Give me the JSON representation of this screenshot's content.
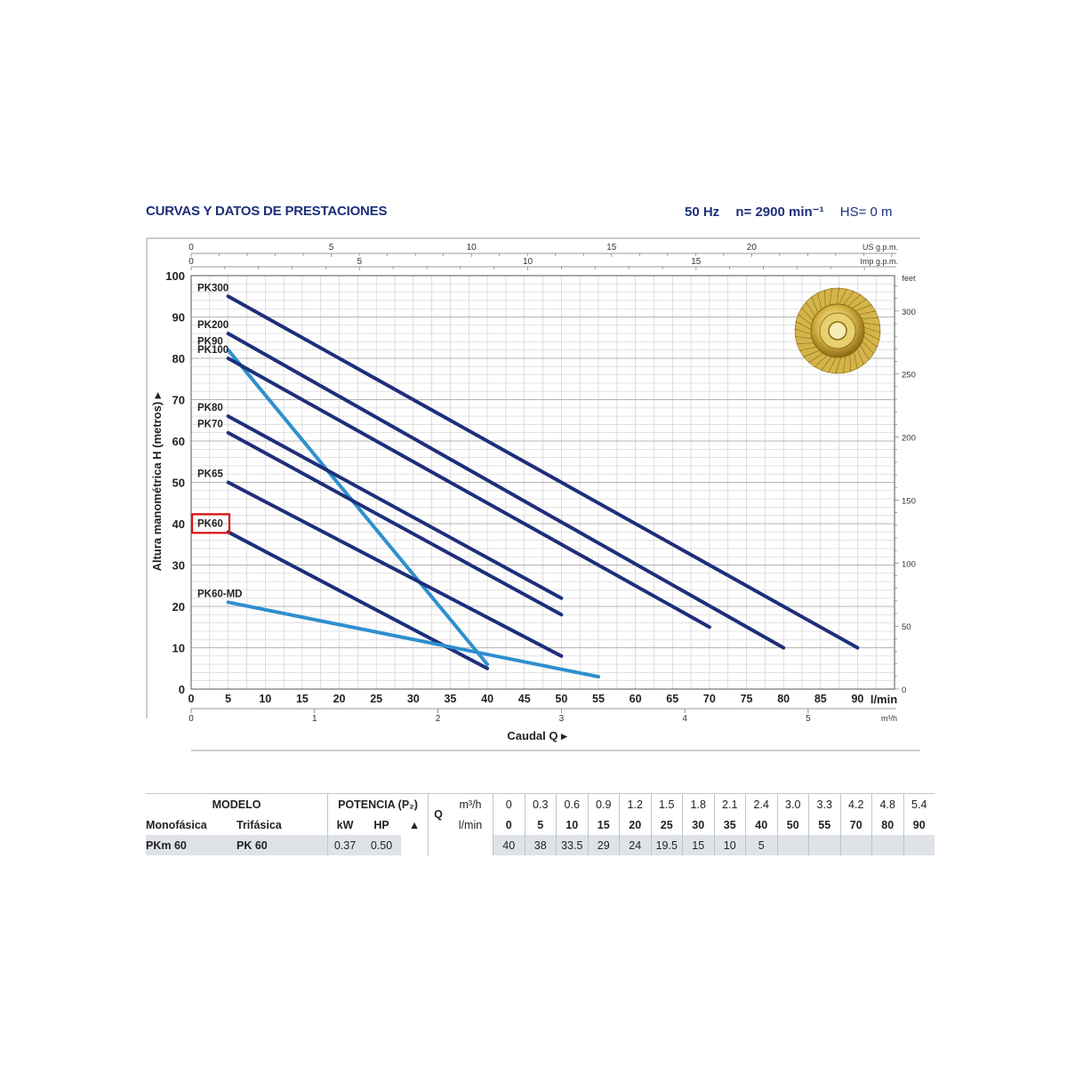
{
  "header": {
    "title": "CURVAS Y DATOS DE PRESTACIONES",
    "hz": "50 Hz",
    "rpm": "n= 2900 min⁻¹",
    "hs": "HS= 0 m"
  },
  "chart_data": {
    "type": "line",
    "title": "",
    "ylabel": "Altura manométrica H (metros)",
    "xlabel": "Caudal Q",
    "x_unit": "l/min",
    "x2_unit": "m³/h",
    "top_units": [
      "US g.p.m.",
      "Imp g.p.m."
    ],
    "right_unit": "feet",
    "xlim": [
      0,
      95
    ],
    "ylim": [
      0,
      100
    ],
    "x_ticks": [
      0,
      5,
      10,
      15,
      20,
      25,
      30,
      35,
      40,
      45,
      50,
      55,
      60,
      65,
      70,
      75,
      80,
      85,
      90
    ],
    "y_ticks": [
      0,
      10,
      20,
      30,
      40,
      50,
      60,
      70,
      80,
      90,
      100
    ],
    "m3h_ticks": [
      0,
      1,
      2,
      3,
      4,
      5
    ],
    "usgpm_ticks": [
      0,
      5,
      10,
      15,
      20
    ],
    "impgpm_ticks": [
      0,
      5,
      10,
      15
    ],
    "feet_ticks": [
      0,
      50,
      100,
      150,
      200,
      250,
      300
    ],
    "grid": true,
    "highlighted_series": "PK60",
    "series": [
      {
        "name": "PK300",
        "color": "#1d2f7a",
        "x": [
          5,
          90
        ],
        "y": [
          95,
          10
        ]
      },
      {
        "name": "PK200",
        "color": "#1d2f7a",
        "x": [
          5,
          80
        ],
        "y": [
          86,
          10
        ]
      },
      {
        "name": "PK90",
        "color": "#2e8fcf",
        "x": [
          5,
          40
        ],
        "y": [
          82,
          6
        ]
      },
      {
        "name": "PK100",
        "color": "#1d2f7a",
        "x": [
          5,
          70
        ],
        "y": [
          80,
          15
        ]
      },
      {
        "name": "PK80",
        "color": "#1d2f7a",
        "x": [
          5,
          50
        ],
        "y": [
          66,
          22
        ]
      },
      {
        "name": "PK70",
        "color": "#1d2f7a",
        "x": [
          5,
          50
        ],
        "y": [
          62,
          18
        ]
      },
      {
        "name": "PK65",
        "color": "#1d2f7a",
        "x": [
          5,
          50
        ],
        "y": [
          50,
          8
        ]
      },
      {
        "name": "PK60",
        "color": "#1d2f7a",
        "x": [
          5,
          40
        ],
        "y": [
          38,
          5
        ]
      },
      {
        "name": "PK60-MD",
        "color": "#2e8fcf",
        "x": [
          5,
          55
        ],
        "y": [
          21,
          3
        ]
      }
    ]
  },
  "table": {
    "modelo_label": "MODELO",
    "mono_label": "Monofásica",
    "tri_label": "Trifásica",
    "potencia_label": "POTENCIA (P₂)",
    "kw_label": "kW",
    "hp_label": "HP",
    "q_label": "Q",
    "m3h_label": "m³/h",
    "lmin_label": "l/min",
    "m3h_values": [
      "0",
      "0.3",
      "0.6",
      "0.9",
      "1.2",
      "1.5",
      "1.8",
      "2.1",
      "2.4",
      "3.0",
      "3.3",
      "4.2",
      "4.8",
      "5.4"
    ],
    "lmin_values": [
      "0",
      "5",
      "10",
      "15",
      "20",
      "25",
      "30",
      "35",
      "40",
      "50",
      "55",
      "70",
      "80",
      "90"
    ],
    "row": {
      "mono": "PKm 60",
      "tri": "PK 60",
      "kw": "0.37",
      "hp": "0.50",
      "heads": [
        "40",
        "38",
        "33.5",
        "29",
        "24",
        "19.5",
        "15",
        "10",
        "5",
        "",
        "",
        "",
        "",
        ""
      ]
    }
  }
}
